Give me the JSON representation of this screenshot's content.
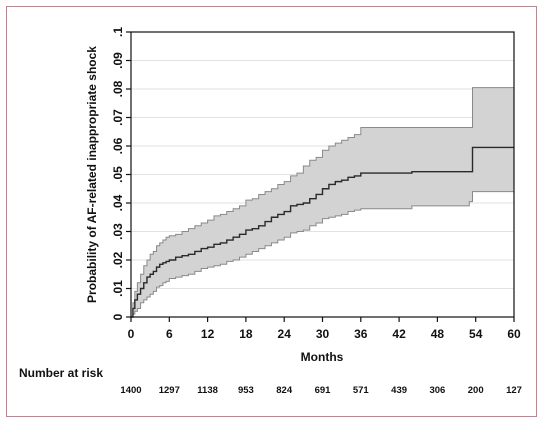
{
  "colors": {
    "frame_border": "#d8788a",
    "ci_fill": "#d3d3d3",
    "ci_stroke": "#8a8a8a",
    "estimate_line": "#2a2a2a",
    "grid": "#e2e2e2"
  },
  "chart_data": {
    "type": "line",
    "title": "",
    "xlabel": "Months",
    "ylabel": "Probability of AF-related inappropriate shock",
    "xlim": [
      0,
      60
    ],
    "ylim": [
      0,
      0.1
    ],
    "x_ticks": [
      "0",
      "6",
      "12",
      "18",
      "24",
      "30",
      "36",
      "42",
      "48",
      "54",
      "60"
    ],
    "y_ticks": [
      "0",
      ".01",
      ".02",
      ".03",
      ".04",
      ".05",
      ".06",
      ".07",
      ".08",
      ".09",
      ".1"
    ],
    "grid": "horizontal",
    "series": [
      {
        "style": "step",
        "x": [
          0,
          0.3,
          0.6,
          1,
          1.5,
          2,
          2.5,
          3,
          3.5,
          4,
          4.5,
          5,
          5.5,
          6,
          7,
          8,
          9,
          10,
          11,
          12,
          13,
          14,
          15,
          16,
          17,
          18,
          19,
          20,
          21,
          22,
          23,
          24,
          25,
          26,
          27,
          28,
          29,
          30,
          31,
          32,
          33,
          34,
          35,
          36,
          40,
          44,
          48,
          53,
          53.5,
          60
        ],
        "y": [
          0,
          0.003,
          0.006,
          0.008,
          0.01,
          0.012,
          0.014,
          0.015,
          0.016,
          0.0175,
          0.0185,
          0.019,
          0.0195,
          0.02,
          0.021,
          0.0215,
          0.022,
          0.023,
          0.024,
          0.0245,
          0.0255,
          0.026,
          0.027,
          0.028,
          0.029,
          0.0305,
          0.031,
          0.032,
          0.0335,
          0.035,
          0.036,
          0.037,
          0.039,
          0.0395,
          0.04,
          0.0415,
          0.043,
          0.045,
          0.0465,
          0.0475,
          0.048,
          0.049,
          0.0495,
          0.0505,
          0.0505,
          0.051,
          0.051,
          0.051,
          0.0595,
          0.0595
        ]
      }
    ],
    "ci_lower": [
      0,
      0.001,
      0.002,
      0.003,
      0.005,
      0.006,
      0.007,
      0.008,
      0.009,
      0.0105,
      0.011,
      0.012,
      0.0125,
      0.0135,
      0.014,
      0.0145,
      0.015,
      0.016,
      0.017,
      0.0175,
      0.018,
      0.0185,
      0.0195,
      0.02,
      0.021,
      0.022,
      0.023,
      0.024,
      0.025,
      0.026,
      0.027,
      0.028,
      0.0295,
      0.03,
      0.0305,
      0.032,
      0.033,
      0.0345,
      0.035,
      0.0355,
      0.036,
      0.037,
      0.0375,
      0.038,
      0.038,
      0.039,
      0.039,
      0.0405,
      0.044,
      0.044
    ],
    "ci_upper": [
      0,
      0.005,
      0.009,
      0.012,
      0.015,
      0.018,
      0.02,
      0.022,
      0.023,
      0.025,
      0.026,
      0.027,
      0.028,
      0.0285,
      0.029,
      0.03,
      0.031,
      0.032,
      0.033,
      0.034,
      0.0355,
      0.036,
      0.037,
      0.038,
      0.039,
      0.041,
      0.0415,
      0.043,
      0.044,
      0.045,
      0.0465,
      0.0475,
      0.0495,
      0.0505,
      0.053,
      0.055,
      0.056,
      0.0585,
      0.06,
      0.061,
      0.062,
      0.063,
      0.064,
      0.0665,
      0.0665,
      0.0665,
      0.0665,
      0.0665,
      0.0805,
      0.0805
    ]
  },
  "risk_table": {
    "label": "Number at risk",
    "months": [
      0,
      6,
      12,
      18,
      24,
      30,
      36,
      42,
      48,
      54,
      60
    ],
    "values": [
      "1400",
      "1297",
      "1138",
      "953",
      "824",
      "691",
      "571",
      "439",
      "306",
      "200",
      "127"
    ]
  }
}
